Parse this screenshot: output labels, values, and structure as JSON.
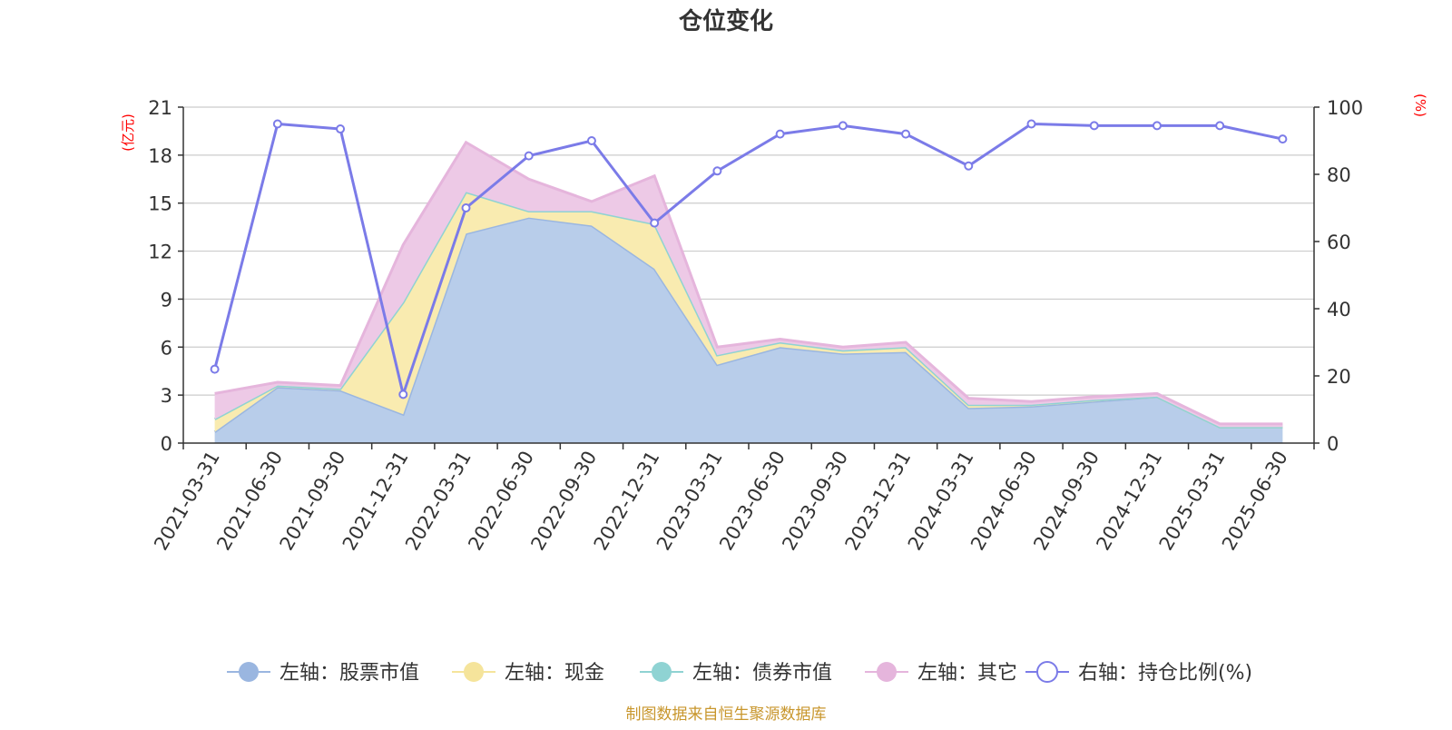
{
  "chart_data": {
    "type": "area",
    "title": "仓位变化",
    "left_axis_unit": "(亿元)",
    "right_axis_unit": "(%)",
    "left_ylim": [
      0,
      21
    ],
    "left_ticks": [
      "0",
      "3",
      "6",
      "9",
      "12",
      "15",
      "18",
      "21"
    ],
    "right_ylim": [
      0,
      100
    ],
    "right_ticks": [
      "0",
      "20",
      "40",
      "60",
      "80",
      "100"
    ],
    "categories": [
      "2021-03-31",
      "2021-06-30",
      "2021-09-30",
      "2021-12-31",
      "2022-03-31",
      "2022-06-30",
      "2022-09-30",
      "2022-12-31",
      "2023-03-31",
      "2023-06-30",
      "2023-09-30",
      "2023-12-31",
      "2024-03-31",
      "2024-06-30",
      "2024-09-30",
      "2024-12-31",
      "2025-03-31",
      "2025-06-30"
    ],
    "series": [
      {
        "name": "左轴：股票市值",
        "axis": "left",
        "type": "area",
        "color": "#9ab6e0",
        "fill": "#b8cdea",
        "values": [
          0.7,
          3.5,
          3.3,
          1.8,
          13.1,
          14.1,
          13.6,
          10.9,
          4.9,
          6.0,
          5.6,
          5.7,
          2.2,
          2.3,
          2.6,
          2.9,
          1.0,
          1.0
        ]
      },
      {
        "name": "左轴：现金",
        "axis": "left",
        "type": "area",
        "color": "#f5e49b",
        "fill": "#f9ebb0",
        "values": [
          0.8,
          0.1,
          0.1,
          7.0,
          2.6,
          0.4,
          0.9,
          2.8,
          0.6,
          0.3,
          0.2,
          0.3,
          0.2,
          0.1,
          0.1,
          0.0,
          0.0,
          0.0
        ]
      },
      {
        "name": "左轴：债券市值",
        "axis": "left",
        "type": "area",
        "color": "#8fd3d3",
        "fill": "#b6e3e3",
        "values": [
          0,
          0,
          0,
          0,
          0,
          0,
          0,
          0,
          0,
          0,
          0,
          0,
          0,
          0,
          0,
          0,
          0,
          0
        ]
      },
      {
        "name": "左轴：其它",
        "axis": "left",
        "type": "area",
        "color": "#e5b5dc",
        "fill": "#edc9e6",
        "values": [
          1.6,
          0.2,
          0.2,
          3.6,
          3.1,
          2.0,
          0.6,
          3.0,
          0.5,
          0.2,
          0.2,
          0.3,
          0.4,
          0.2,
          0.2,
          0.2,
          0.2,
          0.2
        ]
      },
      {
        "name": "右轴：持仓比例(%)",
        "axis": "right",
        "type": "line",
        "color": "#7b7be8",
        "values": [
          22.0,
          95.0,
          93.5,
          14.5,
          70.0,
          85.5,
          90.0,
          65.5,
          81.0,
          92.0,
          94.5,
          92.0,
          82.5,
          95.0,
          94.5,
          94.5,
          94.5,
          90.5
        ]
      }
    ],
    "grid": "horizontal",
    "legend_position": "bottom"
  },
  "footer": {
    "source": "制图数据来自恒生聚源数据库"
  },
  "colors": {
    "title": "#333333",
    "unit": "#ff0000",
    "footer": "#c8962c",
    "grid": "#cccccc",
    "axis": "#333333"
  }
}
